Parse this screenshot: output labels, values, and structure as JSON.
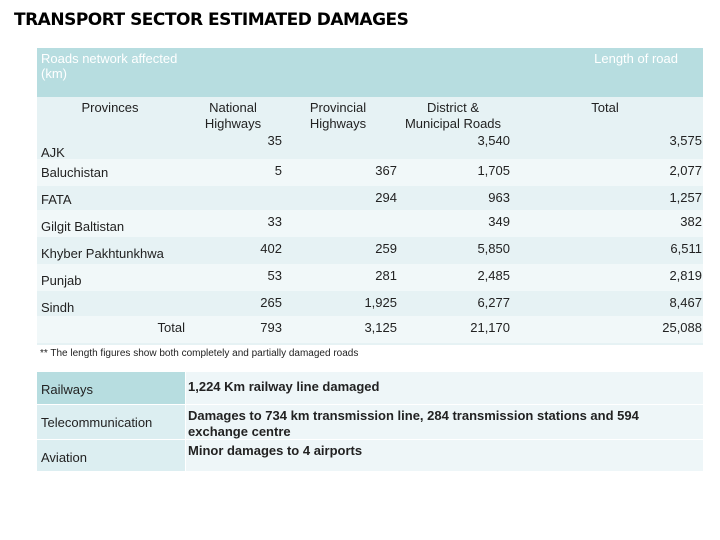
{
  "header": {
    "title": "TRANSPORT SECTOR ESTIMATED DAMAGES"
  },
  "roads_table": {
    "caption_left": "Roads network affected (km)",
    "caption_right": "Length of road",
    "columns": [
      "Provinces",
      "National Highways",
      "Provincial Highways",
      "District & Municipal Roads",
      "Total"
    ],
    "rows": [
      [
        "AJK",
        "35",
        null,
        "3,540",
        "3,575"
      ],
      [
        "Baluchistan",
        "5",
        "367",
        "1,705",
        "2,077"
      ],
      [
        "FATA",
        null,
        "294",
        "963",
        "1,257"
      ],
      [
        "Gilgit Baltistan",
        "33",
        null,
        "349",
        "382"
      ],
      [
        "Khyber Pakhtunkhwa",
        "402",
        "259",
        "5,850",
        "6,511"
      ],
      [
        "Punjab",
        "53",
        "281",
        "2,485",
        "2,819"
      ],
      [
        "Sindh",
        "265",
        "1,925",
        "6,277",
        "8,467"
      ],
      [
        "Total",
        "793",
        "3,125",
        "21,170",
        "25,088"
      ]
    ],
    "footnote": "** The length figures show both completely and partially damaged roads"
  },
  "other_table": {
    "rows": [
      [
        "Railways",
        "1,224 Km railway line damaged"
      ],
      [
        "Telecommunication",
        "Damages to 734 km transmission line, 284 transmission stations and 594 exchange centre"
      ],
      [
        "Aviation",
        "Minor damages to 4 airports"
      ]
    ]
  }
}
